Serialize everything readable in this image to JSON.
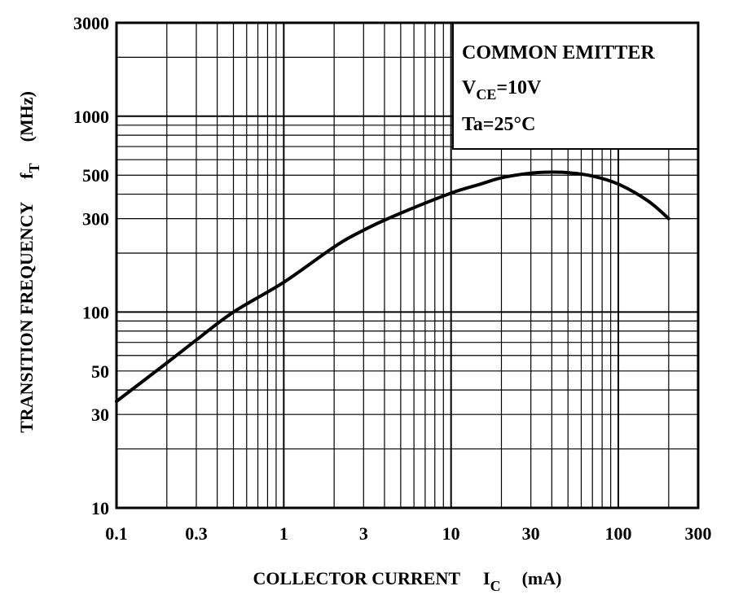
{
  "chart_data": {
    "type": "line",
    "title": "",
    "xlabel": {
      "text": "COLLECTOR CURRENT",
      "symbol": "I",
      "symbol_sub": "C",
      "unit": "(mA)"
    },
    "ylabel": {
      "text": "TRANSITION FREQUENCY",
      "symbol": "f",
      "symbol_sub": "T",
      "unit": "(MHz)"
    },
    "x_scale": "log",
    "y_scale": "log",
    "xlim": [
      0.1,
      300
    ],
    "ylim": [
      10,
      3000
    ],
    "x_ticks": [
      0.1,
      0.3,
      1,
      3,
      10,
      30,
      100,
      300
    ],
    "x_tick_labels": [
      "0.1",
      "0.3",
      "1",
      "3",
      "10",
      "30",
      "100",
      "300"
    ],
    "y_ticks": [
      10,
      30,
      50,
      100,
      300,
      500,
      1000,
      3000
    ],
    "y_tick_labels": [
      "10",
      "30",
      "50",
      "100",
      "300",
      "500",
      "1000",
      "3000"
    ],
    "grid": true,
    "annotation": {
      "line1": "COMMON EMITTER",
      "line2_main": "V",
      "line2_sub": "CE",
      "line2_rest": "=10V",
      "line3": "Ta=25°C"
    },
    "series": [
      {
        "x": [
          0.1,
          0.2,
          0.3,
          0.5,
          1,
          2,
          3,
          5,
          10,
          15,
          20,
          30,
          40,
          50,
          70,
          100,
          150,
          200
        ],
        "y": [
          35,
          55,
          72,
          100,
          142,
          215,
          262,
          320,
          405,
          450,
          485,
          512,
          518,
          515,
          495,
          450,
          370,
          300
        ]
      }
    ],
    "colors": {
      "line": "#000000",
      "grid": "#000000"
    }
  }
}
